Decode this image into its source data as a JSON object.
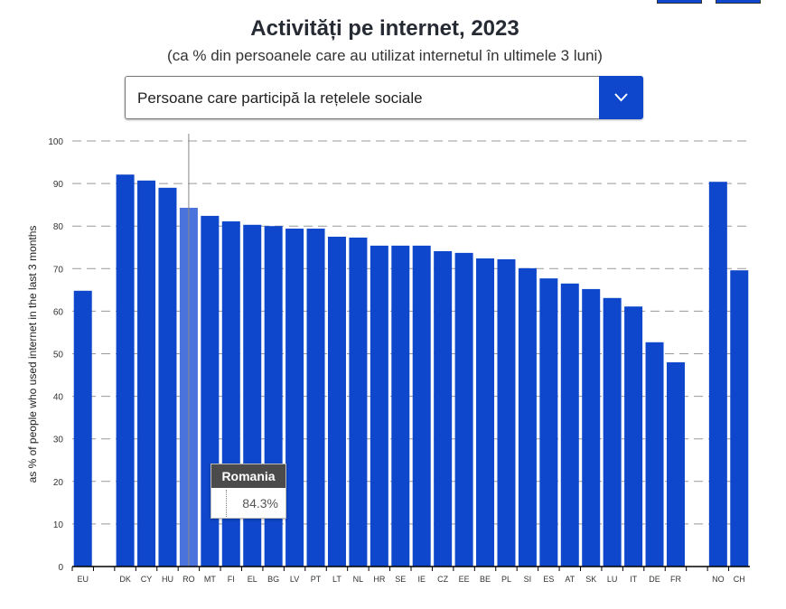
{
  "header": {
    "title": "Activități pe internet, 2023",
    "subtitle": "(ca % din persoanele care au utilizat internetul în ultimele 3 luni)"
  },
  "dropdown": {
    "selected": "Persoane care participă la rețelele sociale",
    "icon": "chevron-down-icon"
  },
  "tooltip": {
    "country": "Romania",
    "value": "84.3%"
  },
  "colors": {
    "bar": "#0e47cb",
    "highlight": "#4a74dc"
  },
  "chart_data": {
    "type": "bar",
    "title": "Activități pe internet, 2023",
    "ylabel": "as % of people who used internet in the last 3 months",
    "ylim": [
      0,
      100
    ],
    "yticks": [
      0,
      10,
      20,
      30,
      40,
      50,
      60,
      70,
      80,
      90,
      100
    ],
    "grid": true,
    "categories": [
      "EU",
      "",
      "DK",
      "CY",
      "HU",
      "RO",
      "MT",
      "FI",
      "EL",
      "BG",
      "LV",
      "PT",
      "LT",
      "NL",
      "HR",
      "SE",
      "IE",
      "CZ",
      "EE",
      "BE",
      "PL",
      "SI",
      "ES",
      "AT",
      "SK",
      "LU",
      "IT",
      "DE",
      "FR",
      "",
      "NO",
      "CH"
    ],
    "values": [
      64.8,
      null,
      92.1,
      90.7,
      89.0,
      84.3,
      82.4,
      81.1,
      80.3,
      80.0,
      79.4,
      79.4,
      77.5,
      77.3,
      75.4,
      75.4,
      75.4,
      74.1,
      73.7,
      72.4,
      72.2,
      70.1,
      67.7,
      66.5,
      65.2,
      63.1,
      61.1,
      52.7,
      48.0,
      null,
      90.4,
      69.6
    ],
    "highlighted": "RO"
  }
}
